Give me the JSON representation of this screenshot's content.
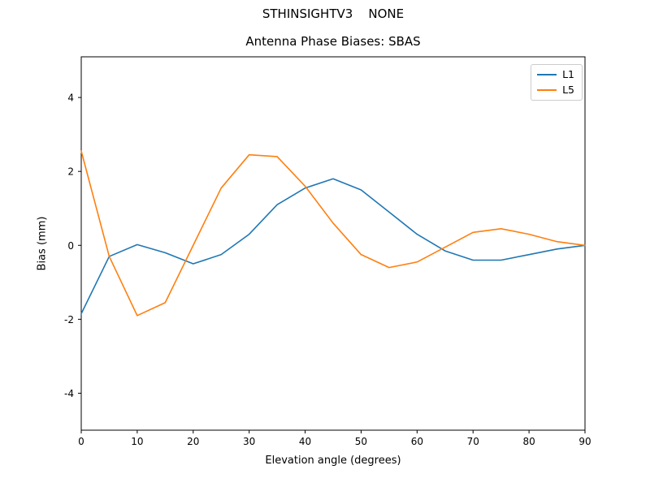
{
  "figure": {
    "suptitle": "STHINSIGHTV3    NONE",
    "title": "Antenna Phase Biases: SBAS"
  },
  "chart_data": {
    "type": "line",
    "suptitle": "STHINSIGHTV3    NONE",
    "title": "Antenna Phase Biases: SBAS",
    "xlabel": "Elevation angle (degrees)",
    "ylabel": "Bias (mm)",
    "xlim": [
      0,
      90
    ],
    "ylim": [
      -5,
      5.1
    ],
    "xticks": [
      0,
      10,
      20,
      30,
      40,
      50,
      60,
      70,
      80,
      90
    ],
    "yticks": [
      -4,
      -2,
      0,
      2,
      4
    ],
    "grid": false,
    "legend_position": "upper right",
    "x": [
      0,
      5,
      10,
      15,
      20,
      25,
      30,
      35,
      40,
      45,
      50,
      55,
      60,
      65,
      70,
      75,
      80,
      85,
      90
    ],
    "series": [
      {
        "name": "L1",
        "color": "#1f77b4",
        "values": [
          -1.85,
          -0.3,
          0.02,
          -0.2,
          -0.5,
          -0.25,
          0.3,
          1.1,
          1.55,
          1.8,
          1.5,
          0.9,
          0.3,
          -0.15,
          -0.4,
          -0.4,
          -0.25,
          -0.1,
          0.0
        ]
      },
      {
        "name": "L5",
        "color": "#ff7f0e",
        "values": [
          2.55,
          -0.3,
          -1.9,
          -1.55,
          0.0,
          1.55,
          2.45,
          2.4,
          1.6,
          0.6,
          -0.25,
          -0.6,
          -0.45,
          -0.05,
          0.35,
          0.45,
          0.3,
          0.1,
          0.0
        ]
      }
    ]
  }
}
